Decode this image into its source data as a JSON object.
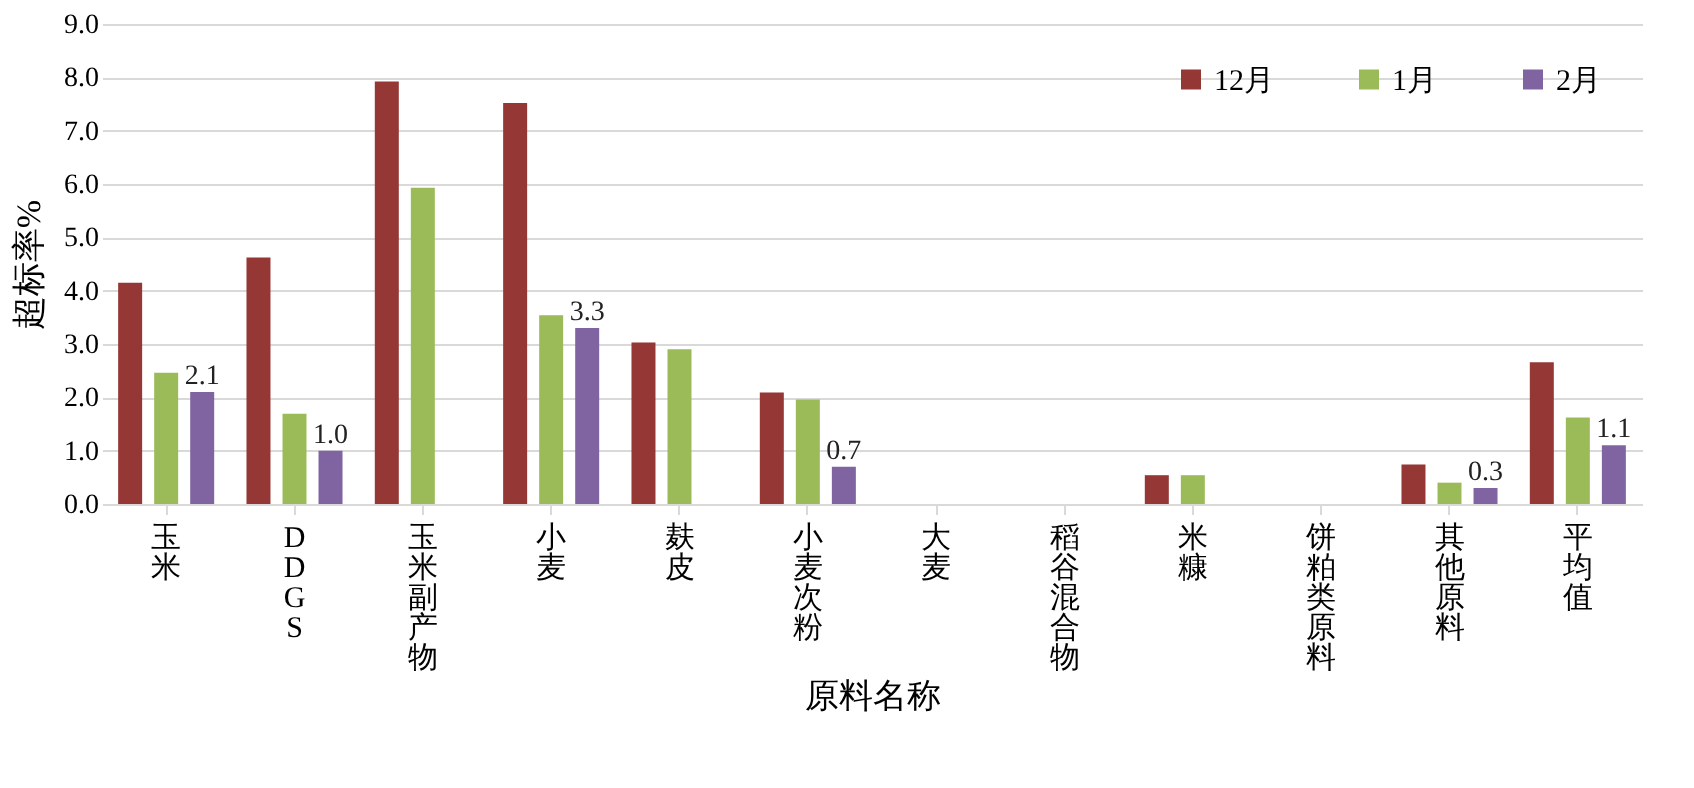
{
  "chart_data": {
    "type": "bar",
    "xlabel": "原料名称",
    "ylabel": "超标率%",
    "categories": [
      "玉米",
      "DDGS",
      "玉米副产物",
      "小麦",
      "麸皮",
      "小麦次粉",
      "大麦",
      "稻谷混合物",
      "米糠",
      "饼粕类原料",
      "其他原料",
      "平均值"
    ],
    "series": [
      {
        "name": "12月",
        "color": "#953735",
        "values": [
          4.15,
          4.62,
          7.92,
          7.52,
          3.03,
          2.09,
          0,
          0,
          0.54,
          0,
          0.74,
          2.66
        ]
      },
      {
        "name": "1月",
        "color": "#9bbb59",
        "values": [
          2.46,
          1.69,
          5.93,
          3.54,
          2.9,
          1.96,
          0,
          0,
          0.54,
          0,
          0.4,
          1.62
        ]
      },
      {
        "name": "2月",
        "color": "#8064a2",
        "values": [
          2.1,
          1.0,
          0,
          3.3,
          0,
          0.7,
          0,
          0,
          0,
          0,
          0.3,
          1.1
        ],
        "value_labels": [
          "2.1",
          "1.0",
          null,
          "3.3",
          null,
          "0.7",
          null,
          null,
          null,
          null,
          "0.3",
          "1.1"
        ]
      }
    ],
    "ylim": [
      0,
      9
    ],
    "yticks": [
      {
        "value": 0,
        "label": "0.0"
      },
      {
        "value": 1,
        "label": "1.0"
      },
      {
        "value": 2,
        "label": "2.0"
      },
      {
        "value": 3,
        "label": "3.0"
      },
      {
        "value": 4,
        "label": "4.0"
      },
      {
        "value": 5,
        "label": "5.0"
      },
      {
        "value": 6,
        "label": "6.0"
      },
      {
        "value": 7,
        "label": "7.0"
      },
      {
        "value": 8,
        "label": "8.0"
      },
      {
        "value": 9,
        "label": "9.0"
      }
    ],
    "grid": "y",
    "legend": "top right"
  }
}
